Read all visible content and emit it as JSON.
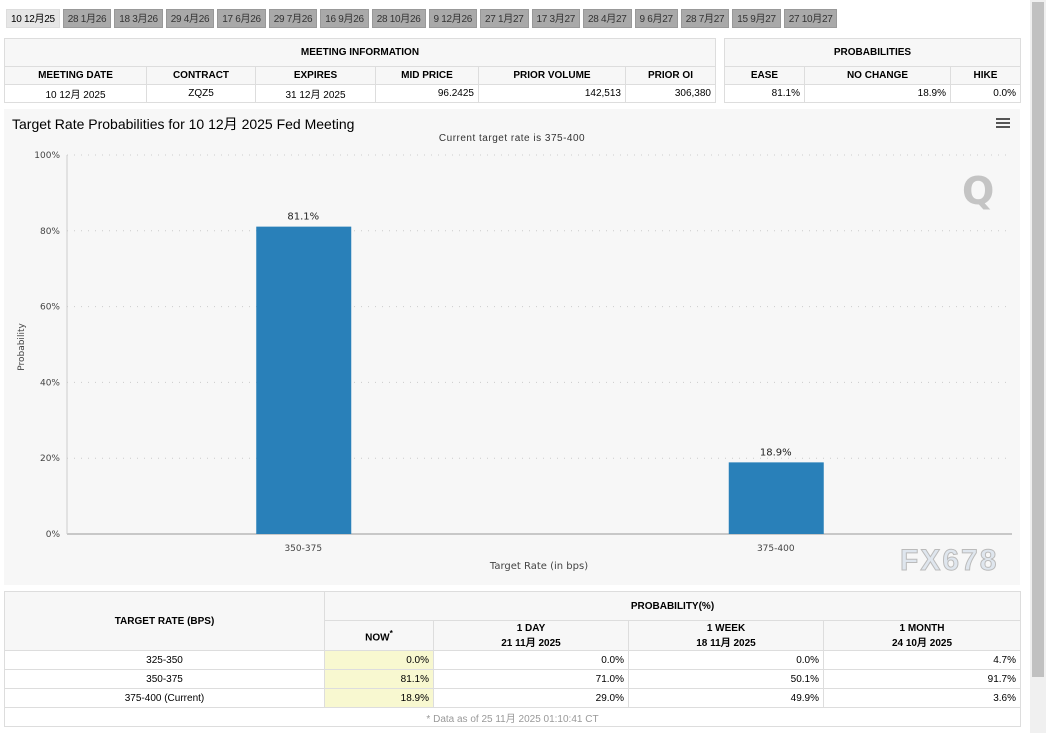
{
  "tabs": [
    "10 12月25",
    "28 1月26",
    "18 3月26",
    "29 4月26",
    "17 6月26",
    "29 7月26",
    "16 9月26",
    "28 10月26",
    "9 12月26",
    "27 1月27",
    "17 3月27",
    "28 4月27",
    "9 6月27",
    "28 7月27",
    "15 9月27",
    "27 10月27"
  ],
  "meeting": {
    "title": "MEETING INFORMATION",
    "headers": [
      "MEETING DATE",
      "CONTRACT",
      "EXPIRES",
      "MID PRICE",
      "PRIOR VOLUME",
      "PRIOR OI"
    ],
    "values": [
      "10 12月 2025",
      "ZQZ5",
      "31 12月 2025",
      "96.2425",
      "142,513",
      "306,380"
    ]
  },
  "probabilities": {
    "title": "PROBABILITIES",
    "headers": [
      "EASE",
      "NO CHANGE",
      "HIKE"
    ],
    "values": [
      "81.1%",
      "18.9%",
      "0.0%"
    ]
  },
  "chart_data": {
    "type": "bar",
    "title": "Target Rate Probabilities for 10 12月 2025 Fed Meeting",
    "subtitle": "Current target rate is 375-400",
    "xlabel": "Target Rate (in bps)",
    "ylabel": "Probability",
    "categories": [
      "350-375",
      "375-400"
    ],
    "values": [
      81.1,
      18.9
    ],
    "data_labels": [
      "81.1%",
      "18.9%"
    ],
    "ylim": [
      0,
      100
    ],
    "yticks": [
      "0%",
      "20%",
      "40%",
      "60%",
      "80%",
      "100%"
    ],
    "grid": true,
    "color": "#2980b9"
  },
  "bottom": {
    "rate_header": "TARGET RATE (BPS)",
    "prob_header": "PROBABILITY(%)",
    "cols": [
      {
        "l1": "NOW",
        "l2": ""
      },
      {
        "l1": "1 DAY",
        "l2": "21 11月 2025"
      },
      {
        "l1": "1 WEEK",
        "l2": "18 11月 2025"
      },
      {
        "l1": "1 MONTH",
        "l2": "24 10月 2025"
      }
    ],
    "now_mark": "*",
    "rows": [
      {
        "rate": "325-350",
        "v": [
          "0.0%",
          "0.0%",
          "0.0%",
          "4.7%"
        ]
      },
      {
        "rate": "350-375",
        "v": [
          "81.1%",
          "71.0%",
          "50.1%",
          "91.7%"
        ]
      },
      {
        "rate": "375-400 (Current)",
        "v": [
          "18.9%",
          "29.0%",
          "49.9%",
          "3.6%"
        ]
      }
    ],
    "footnote": "* Data as of 25 11月 2025 01:10:41 CT"
  },
  "watermark": "FX678"
}
